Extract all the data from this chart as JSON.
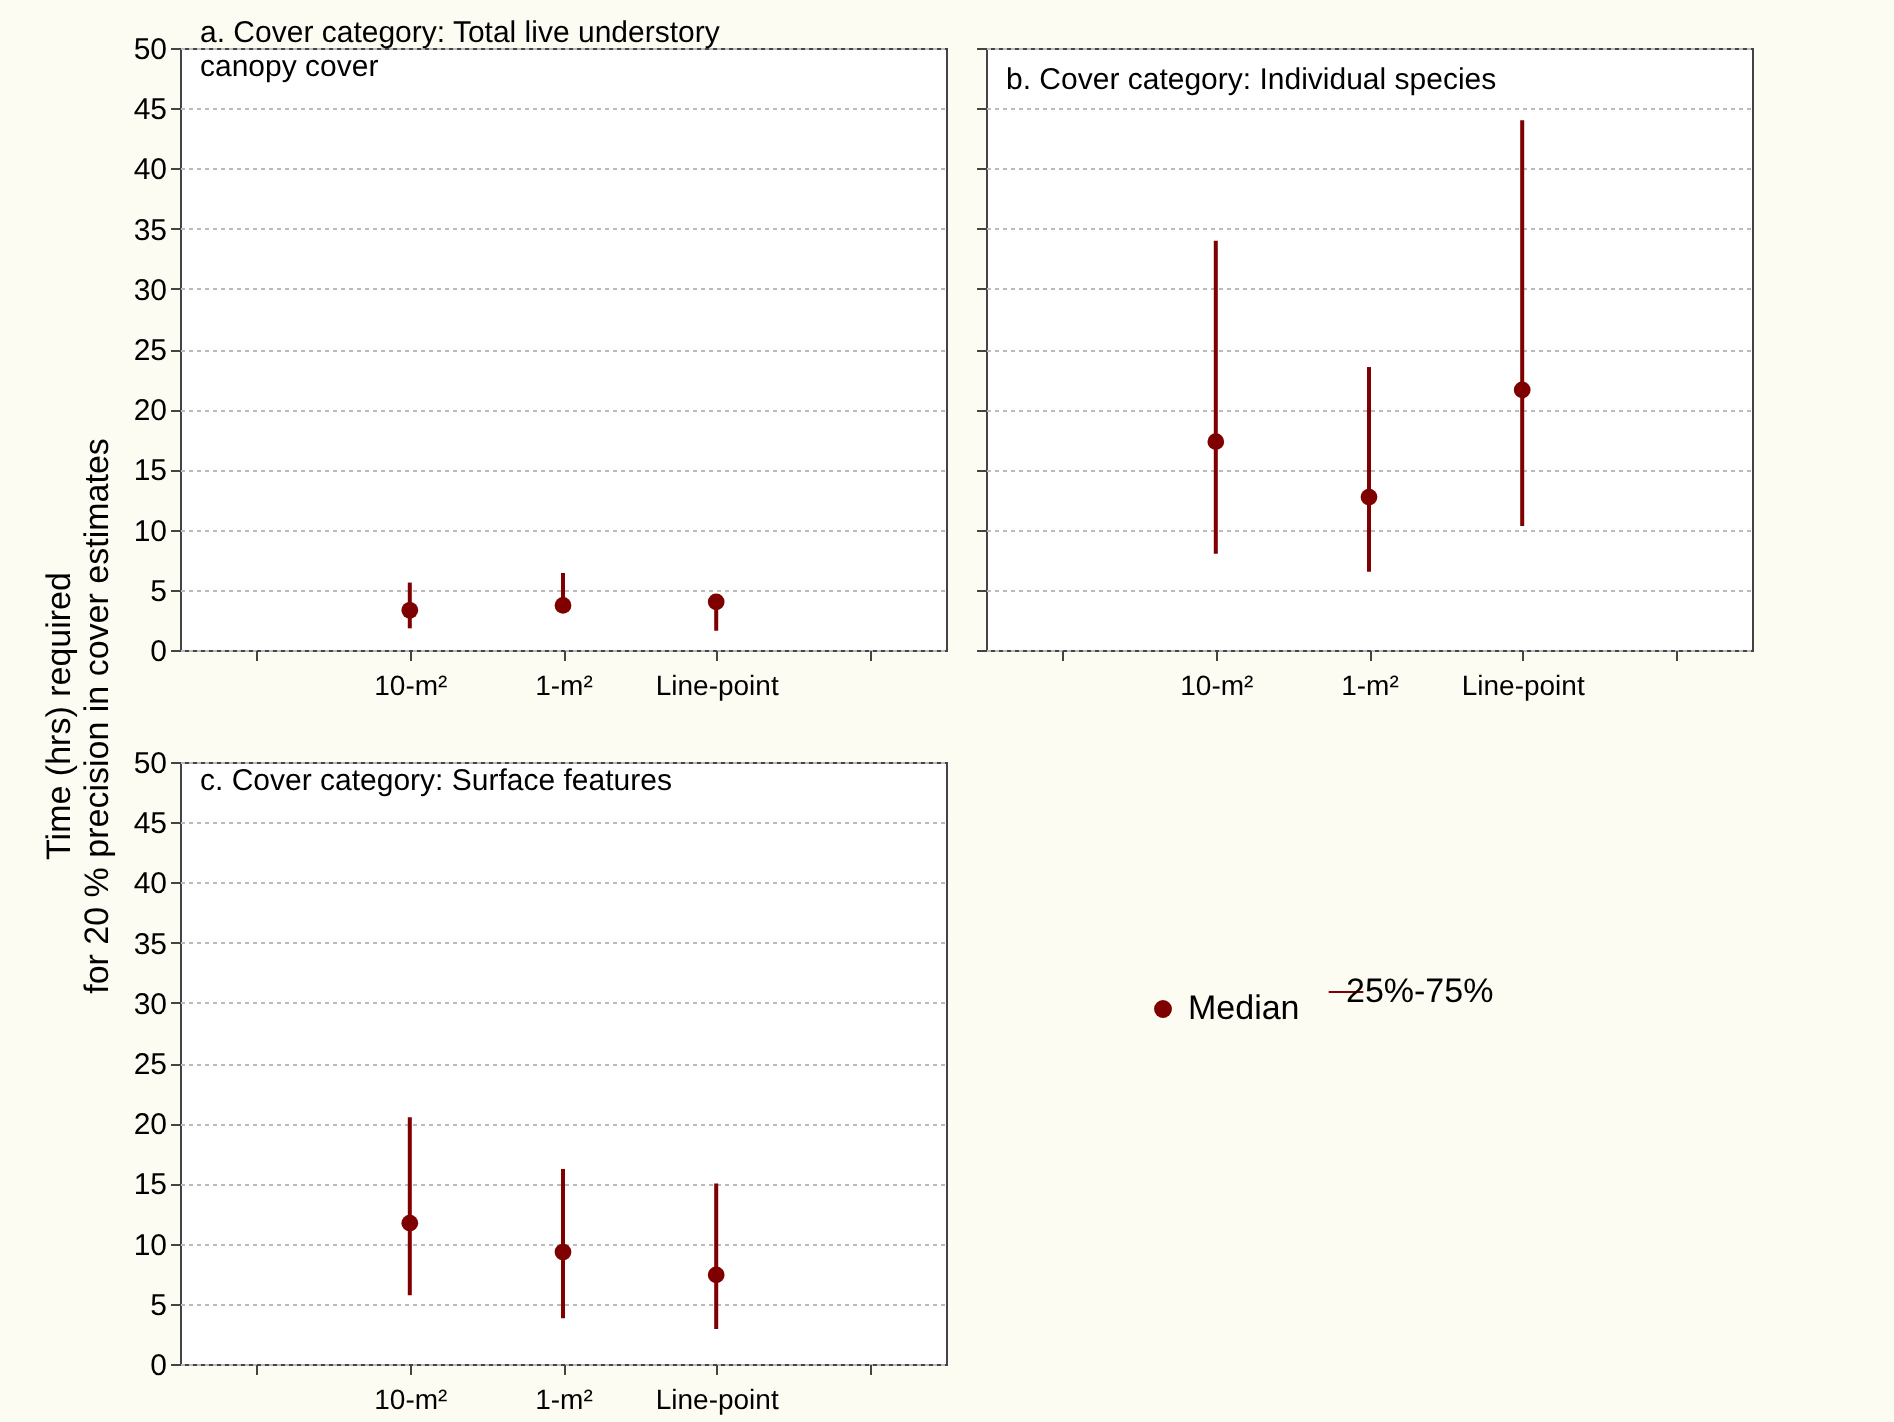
{
  "chart_data": [
    {
      "type": "scatter",
      "title": "a. Cover category: Total live understory\n    canopy cover",
      "ylabel": "Time (hrs) required\nfor 20 % precision in cover estimates",
      "categories": [
        null,
        "10-m²",
        "1-m²",
        "Line-point",
        null
      ],
      "series": [
        {
          "color": "#7f0000",
          "values": [
            null,
            3.3,
            3.7,
            4.0,
            null
          ],
          "errors": [
            null,
            [
              1.8,
              5.6
            ],
            [
              3.5,
              6.4
            ],
            [
              1.6,
              4.0
            ],
            null
          ]
        }
      ],
      "ylim": [
        0,
        50
      ],
      "yticks": [
        0,
        5,
        10,
        15,
        20,
        25,
        30,
        35,
        40,
        45,
        50
      ],
      "grid": "y",
      "marker": "circle"
    },
    {
      "type": "scatter",
      "title": "b. Cover category: Individual species",
      "categories": [
        null,
        "10-m²",
        "1-m²",
        "Line-point",
        null
      ],
      "series": [
        {
          "color": "#7f0000",
          "values": [
            null,
            17.3,
            12.7,
            21.6,
            null
          ],
          "errors": [
            null,
            [
              8,
              34
            ],
            [
              6.5,
              23.5
            ],
            [
              10.3,
              44
            ],
            null
          ]
        }
      ],
      "ylim": [
        0,
        50
      ],
      "yticks": [
        0,
        5,
        10,
        15,
        20,
        25,
        30,
        35,
        40,
        45,
        50
      ],
      "grid": "y",
      "marker": "circle",
      "tick_labels": "x"
    },
    {
      "type": "scatter",
      "title": "c. Cover category: Surface features",
      "categories": [
        null,
        "10-m²",
        "1-m²",
        "Line-point",
        null
      ],
      "series": [
        {
          "name": "Median",
          "color": "#7f0000",
          "values": [
            null,
            11.7,
            9.3,
            7.4,
            null
          ],
          "errors": [
            null,
            [
              5.7,
              20.5
            ],
            [
              3.8,
              16.2
            ],
            [
              2.9,
              15
            ],
            null
          ]
        }
      ],
      "ylim": [
        0,
        50
      ],
      "yticks": [
        0,
        5,
        10,
        15,
        20,
        25,
        30,
        35,
        40,
        45,
        50
      ],
      "grid": "y",
      "marker": "circle",
      "legend": "right",
      "annotations": [
        "25%-75%"
      ]
    }
  ]
}
